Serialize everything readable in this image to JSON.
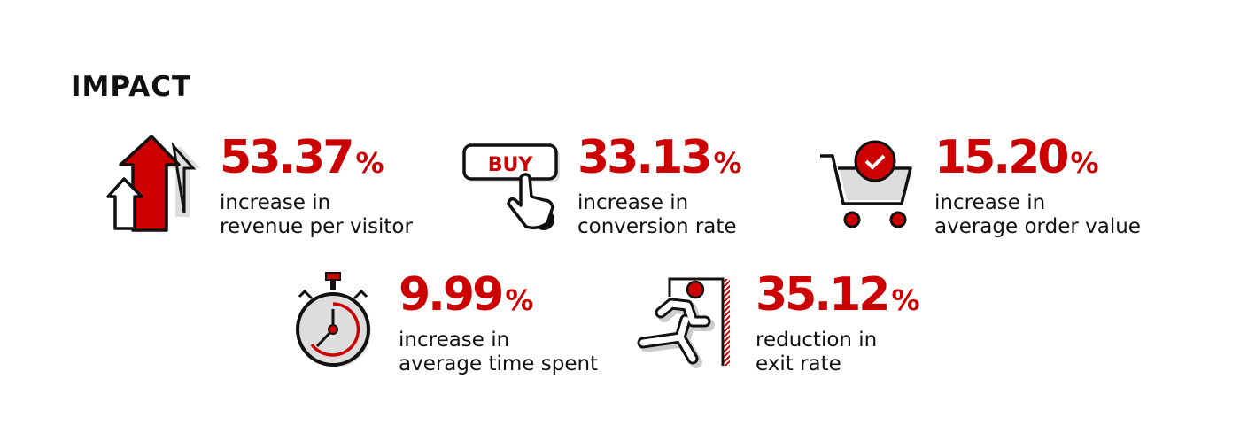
{
  "title": "IMPACT",
  "accent_color": "#cc0000",
  "stats": [
    {
      "value": "53.37",
      "unit": "%",
      "line1": "increase in",
      "line2": "revenue per visitor",
      "icon": "arrows-up-icon"
    },
    {
      "value": "33.13",
      "unit": "%",
      "line1": "increase in",
      "line2": "conversion rate",
      "icon": "buy-button-click-icon",
      "icon_text": "BUY"
    },
    {
      "value": "15.20",
      "unit": "%",
      "line1": "increase in",
      "line2": "average order value",
      "icon": "shopping-cart-icon"
    },
    {
      "value": "9.99",
      "unit": "%",
      "line1": "increase in",
      "line2": "average time spent",
      "icon": "stopwatch-icon"
    },
    {
      "value": "35.12",
      "unit": "%",
      "line1": "reduction in",
      "line2": "exit rate",
      "icon": "exit-running-icon"
    }
  ]
}
